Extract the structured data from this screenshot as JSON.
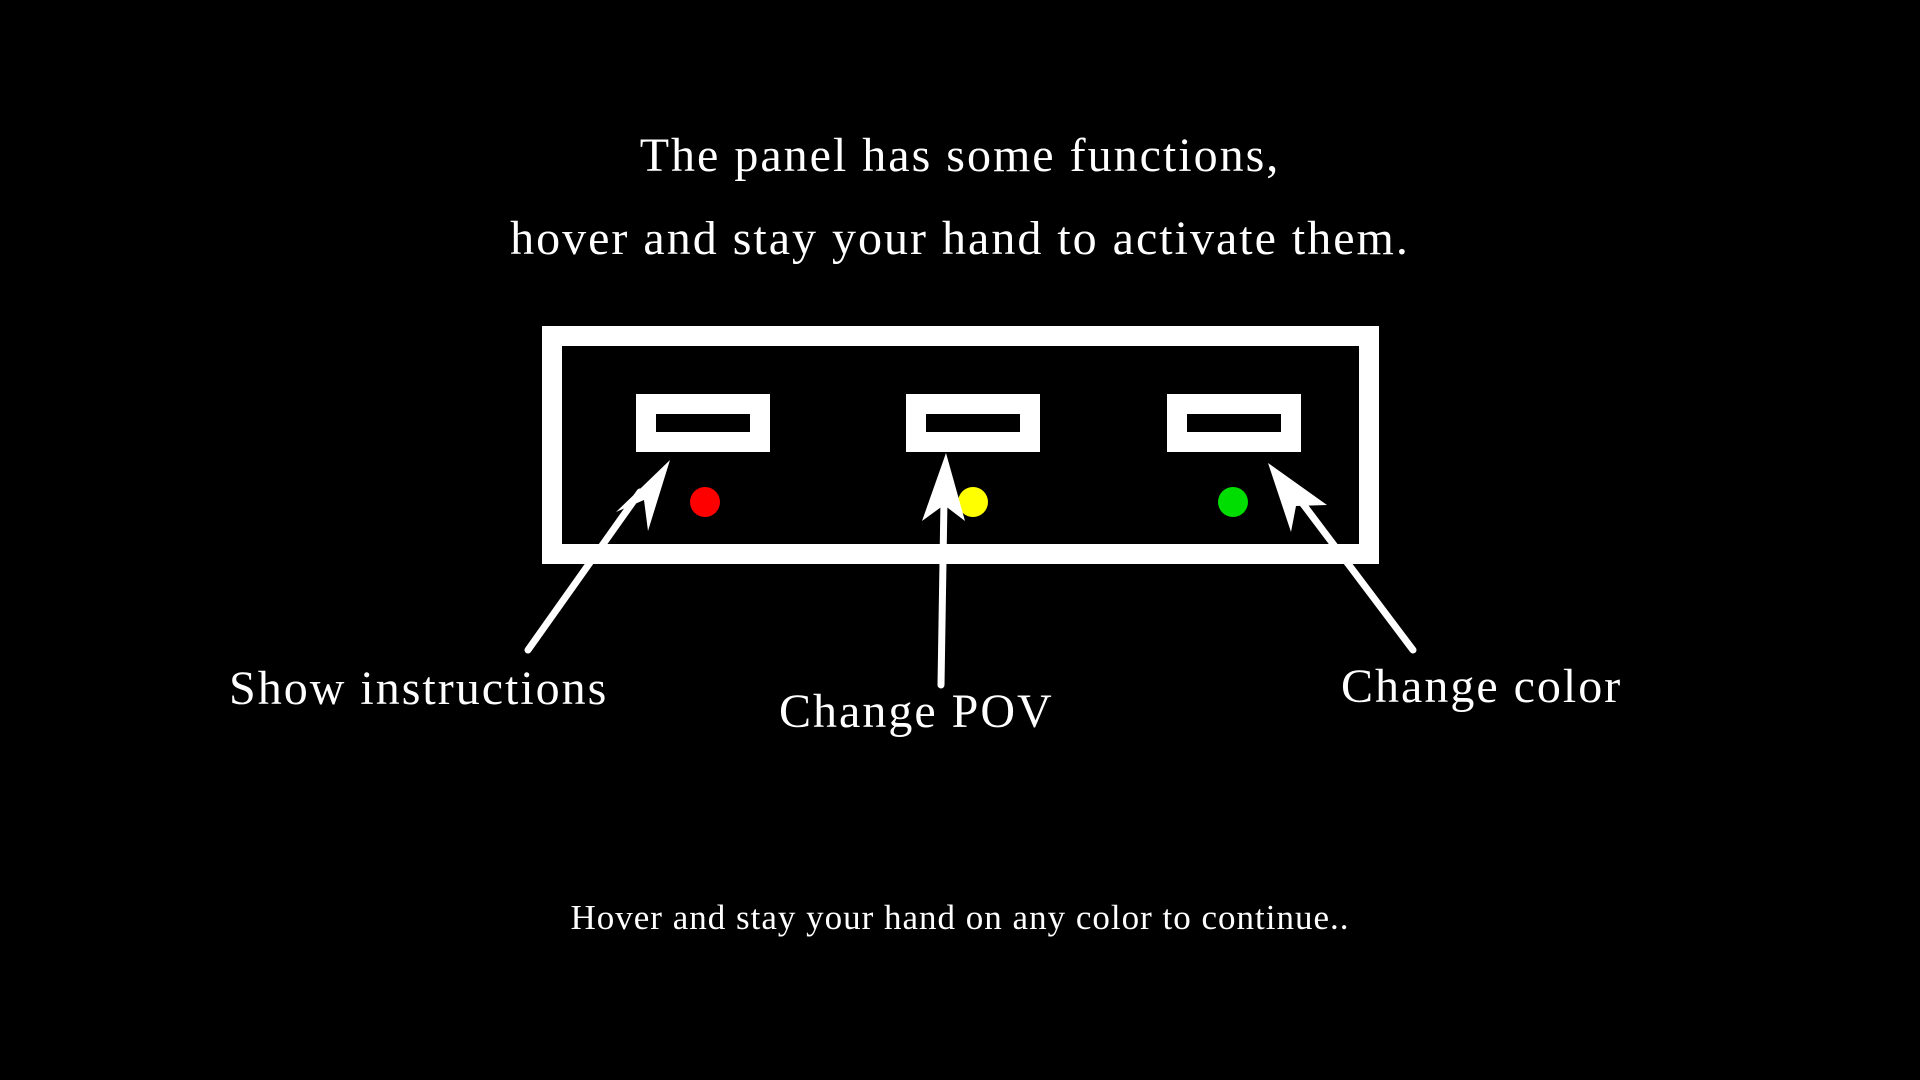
{
  "intro": {
    "line1": "The panel has some functions,",
    "line2": "hover and stay your hand to activate them."
  },
  "panel": {
    "functions": [
      {
        "label": "Show instructions",
        "indicator_color": "#ff0000"
      },
      {
        "label": "Change POV",
        "indicator_color": "#ffff00"
      },
      {
        "label": "Change color",
        "indicator_color": "#00dd00"
      }
    ]
  },
  "footer": {
    "prompt": "Hover and stay your hand on any color to continue.."
  },
  "colors": {
    "background": "#000000",
    "foreground": "#ffffff"
  }
}
